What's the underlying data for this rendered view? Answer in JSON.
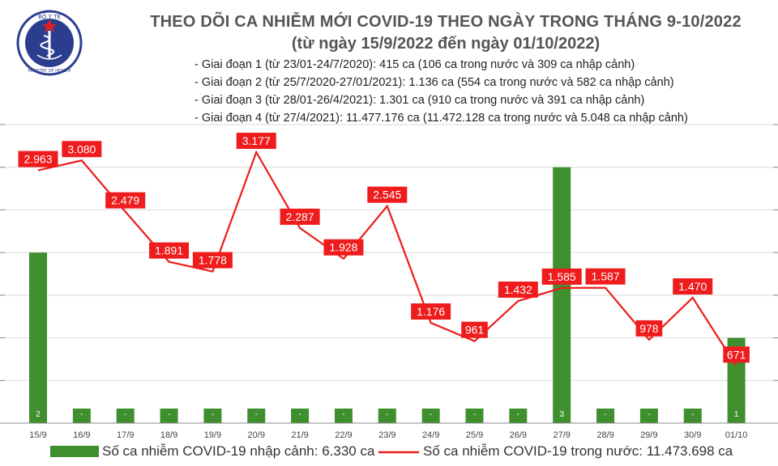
{
  "header": {
    "logo_text_top": "BỘ Y TẾ",
    "logo_text_bottom": "MINISTRY OF HEALTH",
    "title_line1": "THEO DÕI CA NHIỄM MỚI COVID-19 THEO NGÀY TRONG THÁNG 9-10/2022",
    "title_line2": "(từ ngày 15/9/2022 đến ngày 01/10/2022)",
    "phases": [
      "- Giai đoạn 1 (từ 23/01-24/7/2020): 415 ca (106 ca trong nước và 309 ca nhập cảnh)",
      "- Giai đoạn 2 (từ 25/7/2020-27/01/2021): 1.136 ca (554 ca trong nước và 582 ca nhập cảnh)",
      "- Giai đoạn 3 (từ 28/01-26/4/2021): 1.301 ca (910 ca trong nước và 391 ca nhập cảnh)",
      "- Giai đoạn 4 (từ 27/4/2021): 11.477.176 ca (11.472.128 ca trong nước và 5.048 ca nhập cảnh)"
    ]
  },
  "legend": {
    "bar_label": "Số ca nhiễm COVID-19 nhập cảnh: 6.330 ca",
    "line_label": "Số ca nhiễm COVID-19 trong nước: 11.473.698 ca"
  },
  "chart_data": {
    "type": "bar+line",
    "categories": [
      "15/9",
      "16/9",
      "17/9",
      "18/9",
      "19/9",
      "20/9",
      "21/9",
      "22/9",
      "23/9",
      "24/9",
      "25/9",
      "26/9",
      "27/9",
      "28/9",
      "29/9",
      "30/9",
      "01/10"
    ],
    "series": [
      {
        "type": "bar",
        "axis": "right",
        "values": [
          2,
          0,
          0,
          0,
          0,
          0,
          0,
          0,
          0,
          0,
          0,
          0,
          3,
          0,
          0,
          0,
          1
        ],
        "labels": [
          "2",
          "-",
          "-",
          "-",
          "-",
          "-",
          "-",
          "-",
          "-",
          "-",
          "-",
          "-",
          "3",
          "-",
          "-",
          "-",
          "1"
        ]
      },
      {
        "type": "line",
        "axis": "left",
        "values": [
          2963,
          3080,
          2479,
          1891,
          1778,
          3177,
          2287,
          1928,
          2545,
          1176,
          961,
          1432,
          1585,
          1587,
          978,
          1470,
          671
        ],
        "labels": [
          "2.963",
          "3.080",
          "2.479",
          "1.891",
          "1.778",
          "3.177",
          "2.287",
          "1.928",
          "2.545",
          "1.176",
          "961",
          "1.432",
          "1.585",
          "1.587",
          "978",
          "1.470",
          "671"
        ]
      }
    ],
    "ylim_left": [
      0,
      3500
    ],
    "ylim_right": [
      0,
      3.5
    ],
    "colors": {
      "bar": "#3f8f2f",
      "line": "#ee1c1c",
      "label_bg": "#ee1c1c",
      "label_text": "#ffffff",
      "title": "#555555"
    }
  }
}
